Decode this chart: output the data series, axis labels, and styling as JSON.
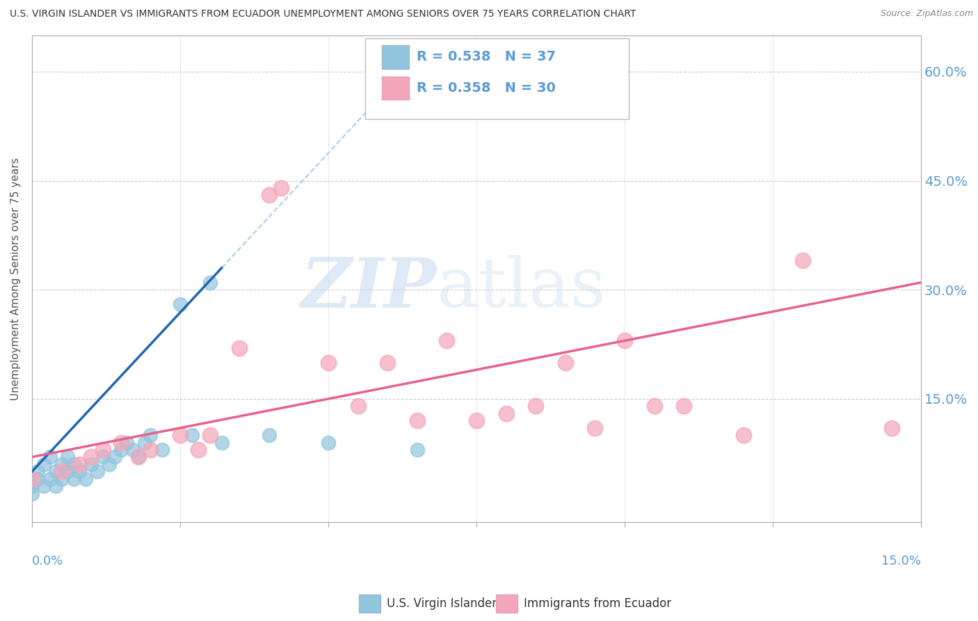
{
  "title": "U.S. VIRGIN ISLANDER VS IMMIGRANTS FROM ECUADOR UNEMPLOYMENT AMONG SENIORS OVER 75 YEARS CORRELATION CHART",
  "source": "Source: ZipAtlas.com",
  "ylabel": "Unemployment Among Seniors over 75 years",
  "blue_series_label": "U.S. Virgin Islanders",
  "pink_series_label": "Immigrants from Ecuador",
  "blue_R": "0.538",
  "blue_N": "37",
  "pink_R": "0.358",
  "pink_N": "30",
  "blue_color": "#92c5de",
  "pink_color": "#f4a6ba",
  "blue_trend_color": "#2166ac",
  "pink_trend_color": "#e8618c",
  "blue_dash_color": "#92c5de",
  "watermark_zip_color": "#c8ddf0",
  "watermark_atlas_color": "#c8ddf0",
  "background_color": "#ffffff",
  "grid_color": "#cccccc",
  "title_color": "#333333",
  "axis_label_color": "#5b9bd5",
  "right_tick_color": "#5b9bd5",
  "xlim": [
    0.0,
    0.15
  ],
  "ylim": [
    -0.02,
    0.65
  ],
  "blue_scatter_x": [
    0.0,
    0.0,
    0.001,
    0.001,
    0.002,
    0.002,
    0.003,
    0.003,
    0.004,
    0.004,
    0.005,
    0.005,
    0.006,
    0.006,
    0.007,
    0.007,
    0.008,
    0.009,
    0.01,
    0.011,
    0.012,
    0.013,
    0.014,
    0.015,
    0.016,
    0.017,
    0.018,
    0.019,
    0.02,
    0.022,
    0.025,
    0.027,
    0.03,
    0.032,
    0.04,
    0.05,
    0.065
  ],
  "blue_scatter_y": [
    0.02,
    0.03,
    0.04,
    0.05,
    0.03,
    0.06,
    0.04,
    0.07,
    0.03,
    0.05,
    0.04,
    0.06,
    0.05,
    0.07,
    0.04,
    0.06,
    0.05,
    0.04,
    0.06,
    0.05,
    0.07,
    0.06,
    0.07,
    0.08,
    0.09,
    0.08,
    0.07,
    0.09,
    0.1,
    0.08,
    0.28,
    0.1,
    0.31,
    0.09,
    0.1,
    0.09,
    0.08
  ],
  "pink_scatter_x": [
    0.0,
    0.005,
    0.008,
    0.01,
    0.012,
    0.015,
    0.018,
    0.02,
    0.025,
    0.028,
    0.03,
    0.035,
    0.04,
    0.042,
    0.05,
    0.055,
    0.06,
    0.065,
    0.07,
    0.075,
    0.08,
    0.085,
    0.09,
    0.095,
    0.1,
    0.105,
    0.11,
    0.12,
    0.13,
    0.145
  ],
  "pink_scatter_y": [
    0.04,
    0.05,
    0.06,
    0.07,
    0.08,
    0.09,
    0.07,
    0.08,
    0.1,
    0.08,
    0.1,
    0.22,
    0.43,
    0.44,
    0.2,
    0.14,
    0.2,
    0.12,
    0.23,
    0.12,
    0.13,
    0.14,
    0.2,
    0.11,
    0.23,
    0.14,
    0.14,
    0.1,
    0.34,
    0.11
  ]
}
